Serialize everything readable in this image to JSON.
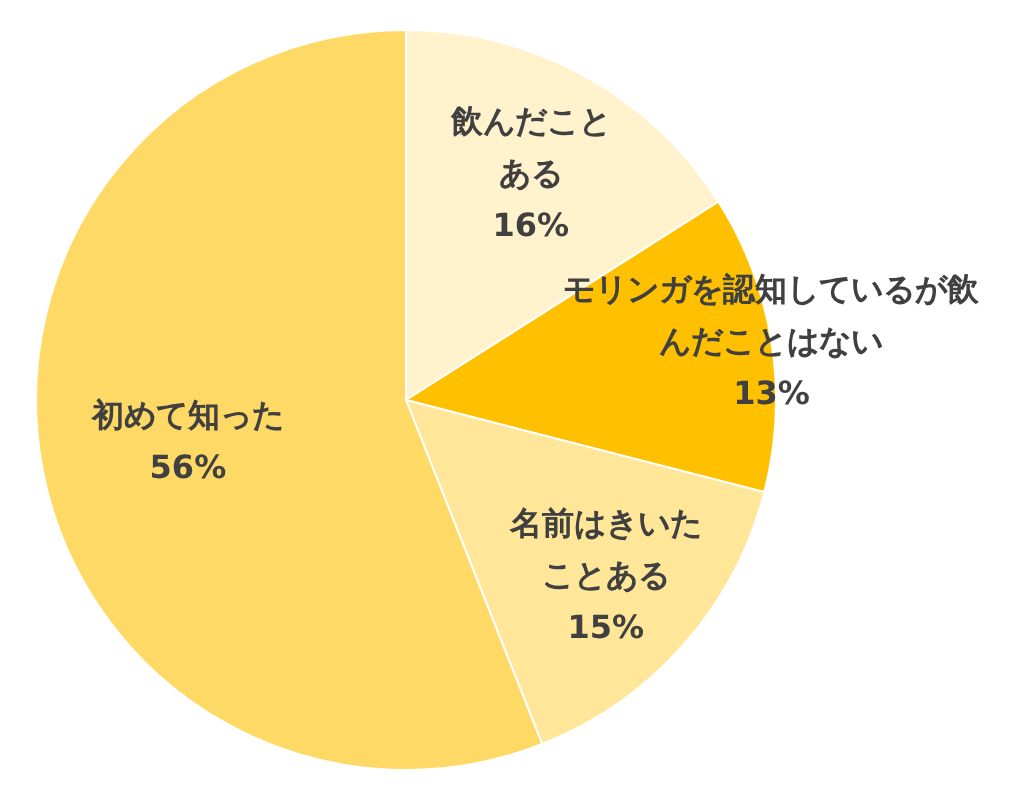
{
  "chart_data": {
    "type": "pie",
    "categories": [
      "飲んだことある",
      "モリンガを認知しているが飲んだことはない",
      "名前はきいたことある",
      "初めて知った"
    ],
    "values": [
      16,
      13,
      15,
      56
    ],
    "colors": [
      "#fff2cc",
      "#ffc000",
      "#ffe699",
      "#ffd966"
    ],
    "value_labels": [
      "16%",
      "13%",
      "15%",
      "56%"
    ]
  }
}
